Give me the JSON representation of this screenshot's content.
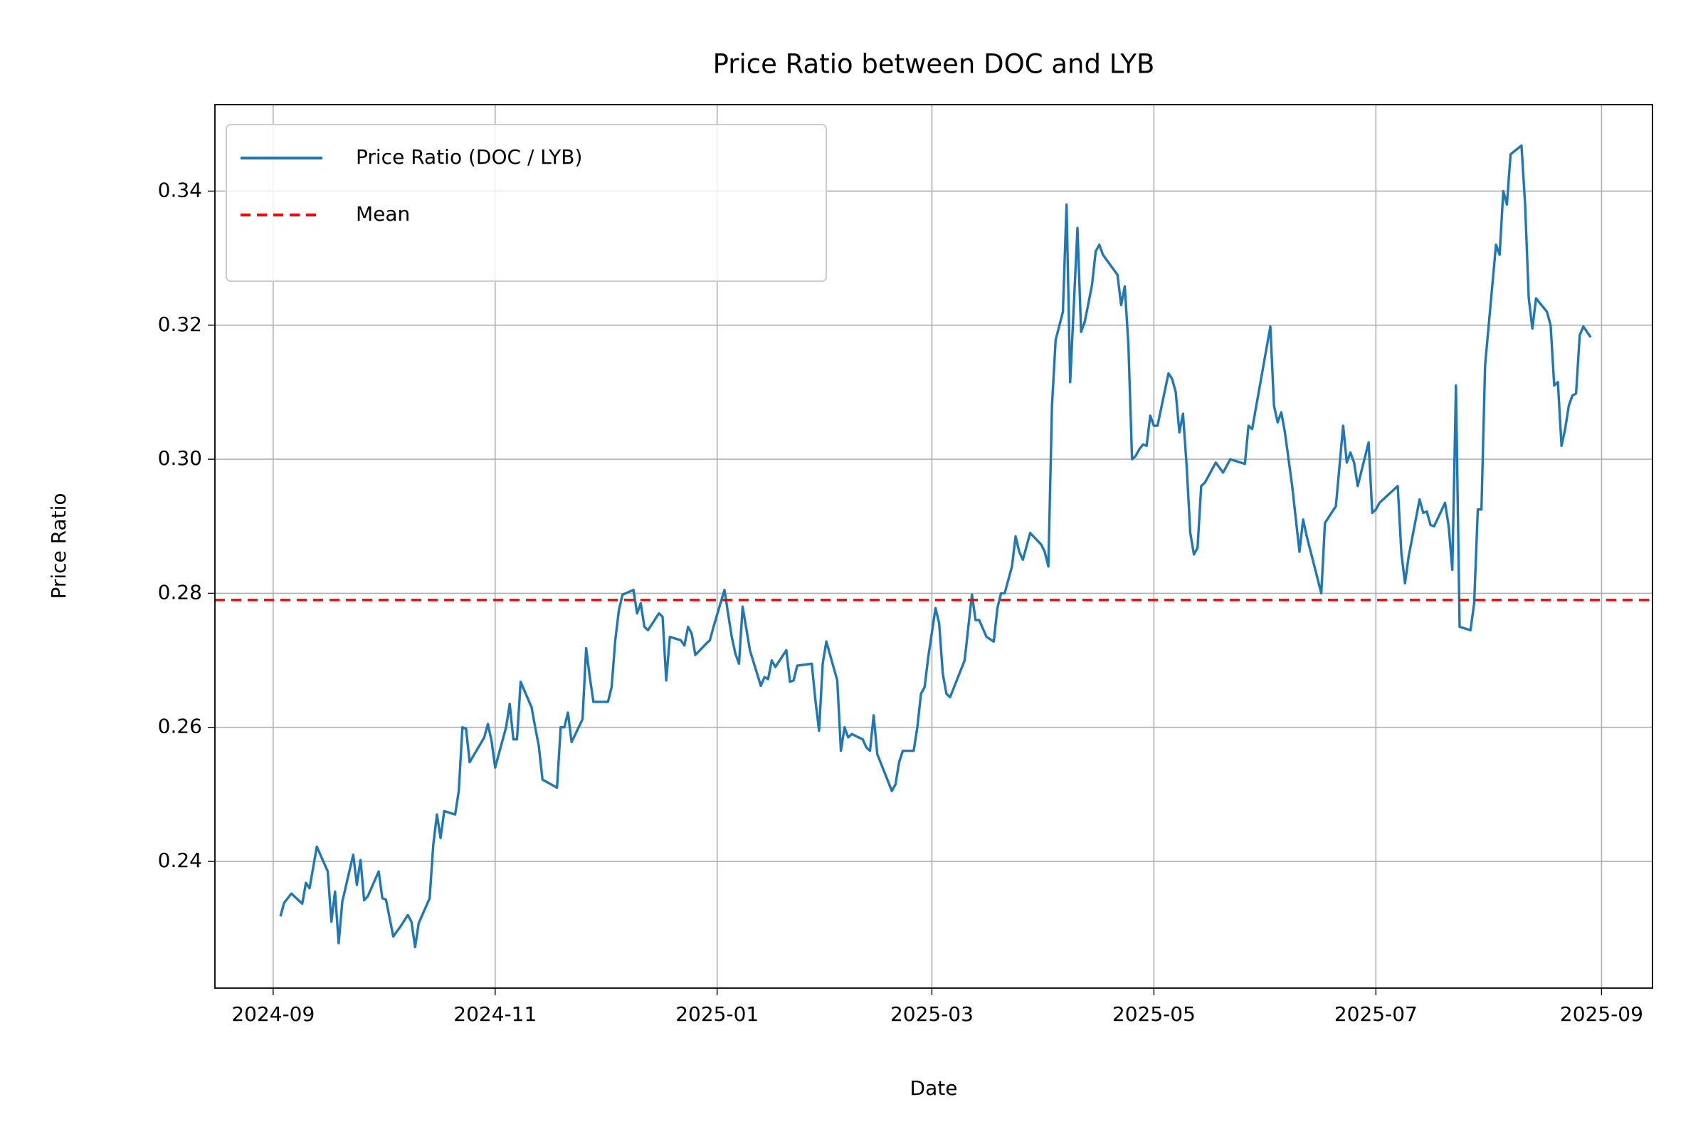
{
  "chart_data": {
    "type": "line",
    "title": "Price Ratio between DOC and LYB",
    "xlabel": "Date",
    "ylabel": "Price Ratio",
    "x": [
      19969,
      19970,
      19972,
      19975,
      19976,
      19977,
      19979,
      19982,
      19983,
      19984,
      19985,
      19986,
      19989,
      19990,
      19991,
      19992,
      19993,
      19996,
      19997,
      19998,
      20000,
      20002,
      20004,
      20005,
      20006,
      20007,
      20010,
      20011,
      20012,
      20013,
      20014,
      20017,
      20018,
      20019,
      20020,
      20021,
      20025,
      20026,
      20027,
      20028,
      20031,
      20032,
      20033,
      20034,
      20035,
      20038,
      20039,
      20040,
      20041,
      20045,
      20046,
      20047,
      20048,
      20049,
      20052,
      20053,
      20054,
      20055,
      20059,
      20060,
      20061,
      20062,
      20063,
      20066,
      20067,
      20068,
      20069,
      20070,
      20073,
      20074,
      20075,
      20076,
      20079,
      20080,
      20081,
      20082,
      20083,
      20086,
      20087,
      20088,
      20091,
      20092,
      20093,
      20094,
      20095,
      20096,
      20098,
      20101,
      20102,
      20103,
      20104,
      20105,
      20108,
      20109,
      20110,
      20111,
      20115,
      20116,
      20117,
      20118,
      20119,
      20122,
      20123,
      20124,
      20125,
      20126,
      20129,
      20130,
      20131,
      20132,
      20133,
      20137,
      20138,
      20139,
      20140,
      20143,
      20144,
      20145,
      20146,
      20147,
      20149,
      20150,
      20151,
      20152,
      20153,
      20157,
      20159,
      20160,
      20161,
      20163,
      20165,
      20166,
      20167,
      20168,
      20170,
      20171,
      20172,
      20173,
      20175,
      20178,
      20179,
      20180,
      20181,
      20182,
      20184,
      20185,
      20186,
      20188,
      20189,
      20190,
      20192,
      20193,
      20194,
      20195,
      20199,
      20200,
      20201,
      20202,
      20203,
      20204,
      20205,
      20206,
      20207,
      20208,
      20209,
      20210,
      20213,
      20214,
      20215,
      20216,
      20217,
      20218,
      20219,
      20220,
      20221,
      20222,
      20223,
      20226,
      20228,
      20230,
      20234,
      20235,
      20236,
      20241,
      20242,
      20243,
      20244,
      20245,
      20247,
      20249,
      20250,
      20251,
      20255,
      20256,
      20259,
      20261,
      20262,
      20263,
      20264,
      20265,
      20268,
      20269,
      20270,
      20271,
      20274,
      20276,
      20277,
      20278,
      20279,
      20282,
      20283,
      20284,
      20285,
      20286,
      20289,
      20290,
      20291,
      20292,
      20293,
      20296,
      20297,
      20298,
      20299,
      20300,
      20301,
      20303,
      20304,
      20305,
      20306,
      20307,
      20310,
      20311,
      20312,
      20313,
      20314,
      20317,
      20318,
      20319,
      20320,
      20321,
      20322,
      20323,
      20324,
      20325,
      20326,
      20327,
      20329
    ],
    "series": [
      {
        "name": "Price Ratio (DOC / LYB)",
        "color": "#1f77b4",
        "values": [
          0.2318,
          0.2338,
          0.2352,
          0.2337,
          0.2368,
          0.236,
          0.2422,
          0.2385,
          0.231,
          0.2355,
          0.2278,
          0.234,
          0.241,
          0.2365,
          0.2402,
          0.2342,
          0.2348,
          0.2385,
          0.2345,
          0.2343,
          0.2288,
          0.2303,
          0.232,
          0.231,
          0.2272,
          0.2308,
          0.2345,
          0.2425,
          0.247,
          0.2435,
          0.2475,
          0.247,
          0.2505,
          0.26,
          0.2598,
          0.2548,
          0.2585,
          0.2605,
          0.258,
          0.254,
          0.26,
          0.2635,
          0.2582,
          0.2582,
          0.2668,
          0.263,
          0.26,
          0.2572,
          0.2522,
          0.251,
          0.26,
          0.26,
          0.2622,
          0.2578,
          0.2612,
          0.2718,
          0.2675,
          0.2638,
          0.2638,
          0.266,
          0.273,
          0.2775,
          0.2798,
          0.2805,
          0.277,
          0.2785,
          0.275,
          0.2745,
          0.277,
          0.2765,
          0.267,
          0.2735,
          0.273,
          0.2722,
          0.275,
          0.274,
          0.2708,
          0.2725,
          0.273,
          0.275,
          0.2805,
          0.277,
          0.2735,
          0.271,
          0.2695,
          0.278,
          0.2715,
          0.2662,
          0.2675,
          0.2672,
          0.27,
          0.269,
          0.2715,
          0.2668,
          0.267,
          0.2692,
          0.2695,
          0.264,
          0.2595,
          0.2695,
          0.2728,
          0.267,
          0.2565,
          0.26,
          0.2585,
          0.259,
          0.2582,
          0.257,
          0.2565,
          0.2618,
          0.256,
          0.2505,
          0.2515,
          0.2548,
          0.2565,
          0.2565,
          0.26,
          0.265,
          0.266,
          0.2705,
          0.2778,
          0.2755,
          0.268,
          0.265,
          0.2645,
          0.27,
          0.2798,
          0.276,
          0.276,
          0.2735,
          0.2728,
          0.2778,
          0.28,
          0.28,
          0.284,
          0.2885,
          0.2862,
          0.285,
          0.289,
          0.2873,
          0.2862,
          0.284,
          0.308,
          0.3178,
          0.322,
          0.338,
          0.3115,
          0.3345,
          0.319,
          0.3205,
          0.326,
          0.331,
          0.332,
          0.3305,
          0.3275,
          0.323,
          0.3258,
          0.317,
          0.3,
          0.3005,
          0.3015,
          0.3022,
          0.302,
          0.3065,
          0.305,
          0.305,
          0.3128,
          0.312,
          0.31,
          0.304,
          0.3068,
          0.299,
          0.289,
          0.2858,
          0.2868,
          0.296,
          0.2965,
          0.2995,
          0.298,
          0.3,
          0.2993,
          0.305,
          0.3045,
          0.3198,
          0.308,
          0.3055,
          0.307,
          0.304,
          0.296,
          0.2862,
          0.291,
          0.2885,
          0.28,
          0.2905,
          0.293,
          0.305,
          0.2995,
          0.301,
          0.2995,
          0.296,
          0.3025,
          0.292,
          0.2925,
          0.2935,
          0.295,
          0.296,
          0.286,
          0.2815,
          0.2855,
          0.294,
          0.292,
          0.2922,
          0.2902,
          0.29,
          0.2935,
          0.29,
          0.2835,
          0.311,
          0.275,
          0.2745,
          0.2785,
          0.2925,
          0.2925,
          0.314,
          0.32,
          0.332,
          0.3305,
          0.34,
          0.338,
          0.3455,
          0.3468,
          0.338,
          0.324,
          0.3195,
          0.324,
          0.322,
          0.32,
          0.311,
          0.3115,
          0.302,
          0.3045,
          0.308,
          0.3095,
          0.3098,
          0.3185,
          0.3198,
          0.3182
        ]
      }
    ],
    "hlines": [
      {
        "name": "Mean",
        "color": "#ff0000",
        "value": 0.279,
        "style": "dashed"
      }
    ],
    "xlim": [
      19951,
      20346
    ],
    "xticks": [
      {
        "value": 19967,
        "label": "2024-09"
      },
      {
        "value": 20028,
        "label": "2024-11"
      },
      {
        "value": 20089,
        "label": "2025-01"
      },
      {
        "value": 20148,
        "label": "2025-03"
      },
      {
        "value": 20209,
        "label": "2025-05"
      },
      {
        "value": 20270,
        "label": "2025-07"
      },
      {
        "value": 20332,
        "label": "2025-09"
      }
    ],
    "ylim": [
      0.2211,
      0.3529
    ],
    "yticks": [
      0.24,
      0.26,
      0.28,
      {
        "value": 0.3,
        "label": "0.30"
      },
      0.32,
      0.34
    ],
    "grid": true,
    "legend": "upper left"
  }
}
